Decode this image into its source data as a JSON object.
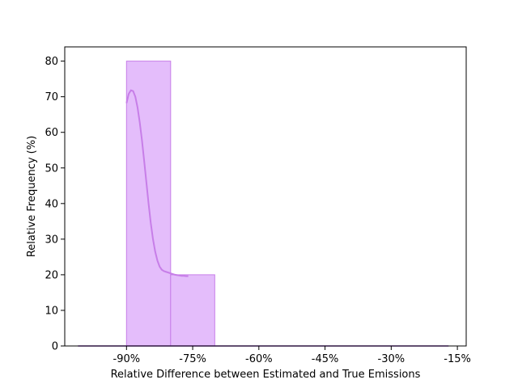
{
  "chart_data": {
    "type": "bar",
    "subtype": "histogram",
    "xlabel": "Relative Difference between Estimated and True Emissions",
    "ylabel": "Relative Frequency (%)",
    "xlim": [
      -1.04,
      -0.13
    ],
    "ylim": [
      0,
      84
    ],
    "xticks": [
      -0.9,
      -0.75,
      -0.6,
      -0.45,
      -0.3,
      -0.15
    ],
    "xtick_labels": [
      "-90%",
      "-75%",
      "-60%",
      "-45%",
      "-30%",
      "-15%"
    ],
    "yticks": [
      0,
      10,
      20,
      30,
      40,
      50,
      60,
      70,
      80
    ],
    "ytick_labels": [
      "0",
      "10",
      "20",
      "30",
      "40",
      "50",
      "60",
      "70",
      "80"
    ],
    "bins": [
      {
        "x0": -0.9,
        "x1": -0.8,
        "value": 80
      },
      {
        "x0": -0.8,
        "x1": -0.7,
        "value": 20
      }
    ],
    "kde": {
      "x": [
        -0.9,
        -0.895,
        -0.89,
        -0.885,
        -0.88,
        -0.875,
        -0.87,
        -0.865,
        -0.86,
        -0.855,
        -0.85,
        -0.845,
        -0.84,
        -0.835,
        -0.83,
        -0.825,
        -0.82,
        -0.815,
        -0.81,
        -0.805,
        -0.8,
        -0.795,
        -0.79,
        -0.785,
        -0.78,
        -0.775,
        -0.77,
        -0.765,
        -0.76
      ],
      "y": [
        68.2,
        70.8,
        71.8,
        71.6,
        70.0,
        67.0,
        62.8,
        57.8,
        52.0,
        46.0,
        40.0,
        34.5,
        30.0,
        26.5,
        24.0,
        22.3,
        21.4,
        21.0,
        20.8,
        20.6,
        20.4,
        20.2,
        20.0,
        19.9,
        19.8,
        19.7,
        19.7,
        19.6,
        19.6
      ]
    },
    "baseline_x": [
      -1.01,
      -0.17
    ],
    "colors": {
      "bar_fill": "#e4bdfb",
      "bar_edge": "#c77ee8",
      "kde_line": "#c77ee8",
      "baseline": "#8a3fbf"
    },
    "grid": false,
    "legend": "none"
  }
}
